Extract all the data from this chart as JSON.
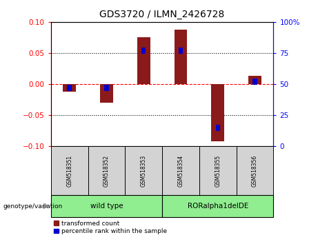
{
  "title": "GDS3720 / ILMN_2426728",
  "samples": [
    "GSM518351",
    "GSM518352",
    "GSM518353",
    "GSM518354",
    "GSM518355",
    "GSM518356"
  ],
  "red_values": [
    -0.012,
    -0.03,
    0.075,
    0.088,
    -0.092,
    0.013
  ],
  "blue_values_pct": [
    47,
    47,
    77,
    77,
    15,
    52
  ],
  "ylim_left": [
    -0.1,
    0.1
  ],
  "ylim_right": [
    0,
    100
  ],
  "yticks_left": [
    -0.1,
    -0.05,
    0.0,
    0.05,
    0.1
  ],
  "yticks_right": [
    0,
    25,
    50,
    75,
    100
  ],
  "group_labels": [
    "wild type",
    "RORalpha1delDE"
  ],
  "group_ranges": [
    [
      0,
      2
    ],
    [
      3,
      5
    ]
  ],
  "group_color": "#90EE90",
  "sample_cell_color": "#D3D3D3",
  "red_color": "#8B1A1A",
  "blue_color": "#0000CD",
  "bar_width": 0.35,
  "blue_bar_width": 0.12,
  "blue_bar_height": 0.01,
  "legend_labels": [
    "transformed count",
    "percentile rank within the sample"
  ],
  "genotype_label": "genotype/variation"
}
